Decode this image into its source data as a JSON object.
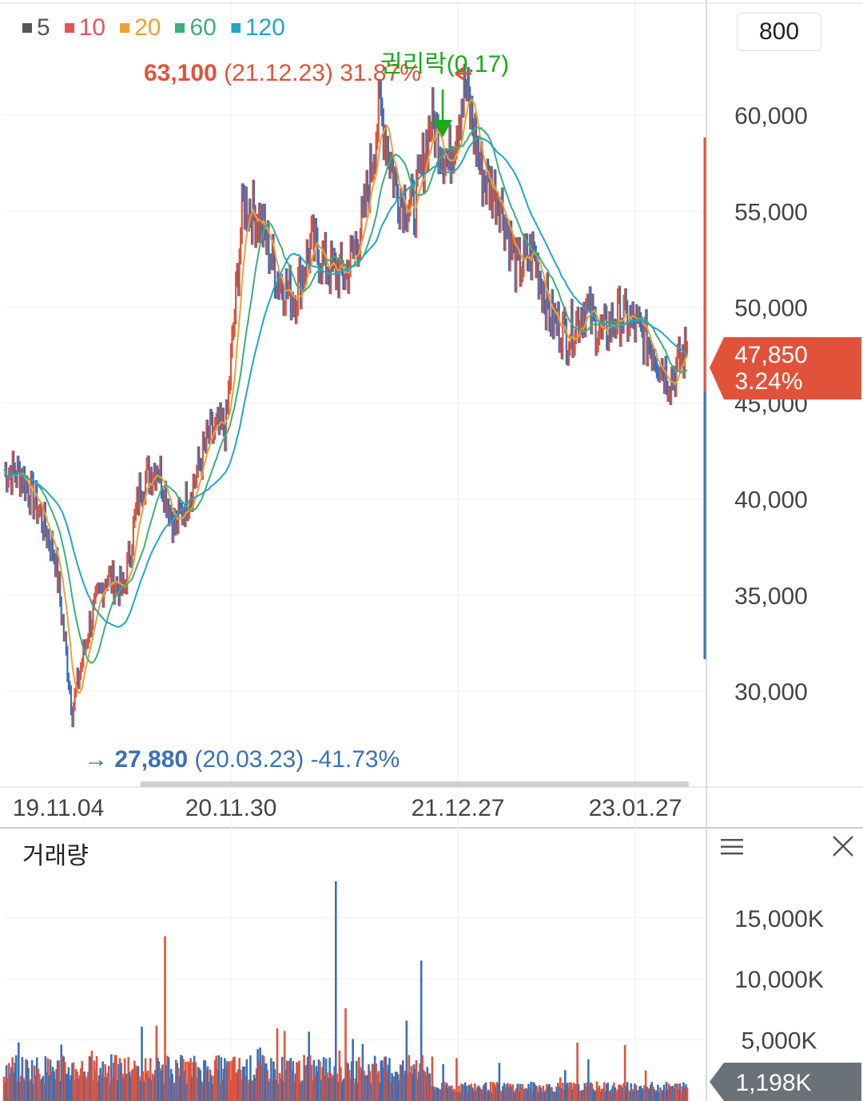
{
  "legend": [
    {
      "label": "5",
      "color": "#555555"
    },
    {
      "label": "10",
      "color": "#e8505b"
    },
    {
      "label": "20",
      "color": "#f0a030"
    },
    {
      "label": "60",
      "color": "#3bb07a"
    },
    {
      "label": "120",
      "color": "#21a6c8"
    }
  ],
  "period_button": "800",
  "high_annotation": {
    "price": "63,100",
    "detail": "(21.12.23) 31.87%"
  },
  "low_annotation": {
    "arrow": "→",
    "price": "27,880",
    "detail": "(20.03.23) -41.73%"
  },
  "ex_rights_label": "권리락(0.17)",
  "current_price": {
    "price": "47,850",
    "change": "3.24%"
  },
  "volume_panel": {
    "title": "거래량",
    "current_volume": "1,198K"
  },
  "colors": {
    "up": "#e0533a",
    "down": "#3a70b8",
    "grid": "#eeeeee",
    "ex_rights": "#1aaa1a"
  },
  "chart_data": [
    {
      "type": "line",
      "title": "",
      "price_axis": {
        "ticks": [
          30000,
          35000,
          40000,
          45000,
          50000,
          55000,
          60000
        ],
        "tick_labels": [
          "30,000",
          "35,000",
          "40,000",
          "45,000",
          "50,000",
          "55,000",
          "60,000"
        ],
        "range": [
          25000,
          66000
        ]
      },
      "date_ticks": [
        "19.11.04",
        "20.11.30",
        "21.12.27",
        "23.01.27"
      ],
      "grid": true,
      "legend_position": "top-left",
      "series_close": {
        "x": [
          "19.11",
          "19.12",
          "20.01",
          "20.02",
          "20.03",
          "20.04",
          "20.05",
          "20.06",
          "20.07",
          "20.08",
          "20.09",
          "20.10",
          "20.11",
          "20.12",
          "21.01",
          "21.02",
          "21.03",
          "21.04",
          "21.05",
          "21.06",
          "21.07",
          "21.08",
          "21.09",
          "21.10",
          "21.11",
          "21.12",
          "22.01",
          "22.02",
          "22.03",
          "22.04",
          "22.05",
          "22.06",
          "22.07",
          "22.08",
          "22.09",
          "22.10",
          "22.11",
          "22.12",
          "23.01",
          "23.02",
          "23.03",
          "23.04"
        ],
        "values": [
          41500,
          41300,
          39500,
          37000,
          29000,
          33500,
          36000,
          35200,
          40800,
          41800,
          38500,
          40600,
          43300,
          43800,
          55500,
          54500,
          51500,
          50500,
          53300,
          52000,
          51700,
          54400,
          60400,
          56000,
          55100,
          59800,
          57500,
          61500,
          56800,
          55700,
          52000,
          52800,
          49500,
          48500,
          50000,
          48500,
          49600,
          49000,
          47800,
          46200,
          47850,
          47850
        ]
      },
      "volume_axis": {
        "ticks": [
          5000,
          10000,
          15000
        ],
        "tick_labels": [
          "5,000K",
          "10,000K",
          "15,000K"
        ]
      },
      "volume_spikes_k": [
        {
          "x": "20.08",
          "value": 13500
        },
        {
          "x": "21.06",
          "value": 18000
        },
        {
          "x": "21.11",
          "value": 11500
        }
      ]
    }
  ]
}
